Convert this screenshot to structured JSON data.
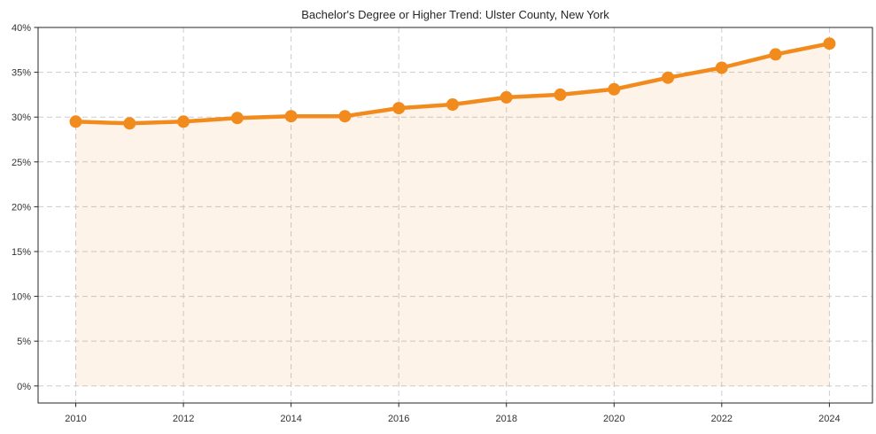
{
  "chart_data": {
    "type": "line",
    "title": "Bachelor's Degree or Higher Trend: Ulster County, New York",
    "x": [
      2010,
      2011,
      2012,
      2013,
      2014,
      2015,
      2016,
      2017,
      2018,
      2019,
      2020,
      2021,
      2022,
      2023,
      2024
    ],
    "series": [
      {
        "name": "Bachelor's degree or higher (%)",
        "values": [
          29.5,
          29.3,
          29.5,
          29.9,
          30.1,
          30.1,
          31.0,
          31.4,
          32.2,
          32.5,
          33.1,
          34.4,
          35.5,
          37.0,
          38.2
        ]
      }
    ],
    "xlabel": "",
    "ylabel": "",
    "xlim": [
      2009.3,
      2024.8
    ],
    "ylim": [
      -1.9,
      40
    ],
    "xticks": [
      2010,
      2012,
      2014,
      2016,
      2018,
      2020,
      2022,
      2024
    ],
    "xtick_labels": [
      "2010",
      "2012",
      "2014",
      "2016",
      "2018",
      "2020",
      "2022",
      "2024"
    ],
    "yticks": [
      0,
      5,
      10,
      15,
      20,
      25,
      30,
      35,
      40
    ],
    "ytick_labels": [
      "0%",
      "5%",
      "10%",
      "15%",
      "20%",
      "25%",
      "30%",
      "35%",
      "40%"
    ],
    "grid": true,
    "grid_style": "dashed",
    "legend": "none",
    "fill_to_zero": true,
    "marker": {
      "shape": "circle",
      "radius": 7
    },
    "line_width": 4.5,
    "colors": {
      "line": "#f28b1d",
      "marker": "#f28b1d",
      "fill": "rgba(242,139,29,0.10)",
      "grid": "#cccccc",
      "spine": "#262626",
      "tick_text": "#333333",
      "title_text": "#262626",
      "background": "#ffffff"
    }
  }
}
